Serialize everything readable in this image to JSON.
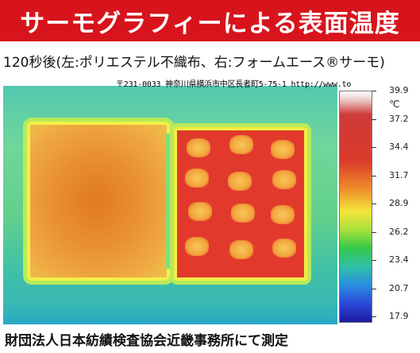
{
  "title": "サーモグラフィーによる表面温度",
  "subtitle": "120秒後(左:ポリエステル不織布、右:フォームエース®サーモ)",
  "address": "〒231-0033 神奈川県横浜市中区長者町5-75-1 http://www.to",
  "scale": {
    "unit": "℃",
    "labels": [
      "39.9",
      "37.2",
      "34.4",
      "31.7",
      "28.9",
      "26.2",
      "23.4",
      "20.7",
      "17.9"
    ]
  },
  "footer": "財団法人日本紡績検査協会近畿事務所にて測定",
  "colors": {
    "title_bg": "#d7141c",
    "title_text": "#ffffff"
  }
}
